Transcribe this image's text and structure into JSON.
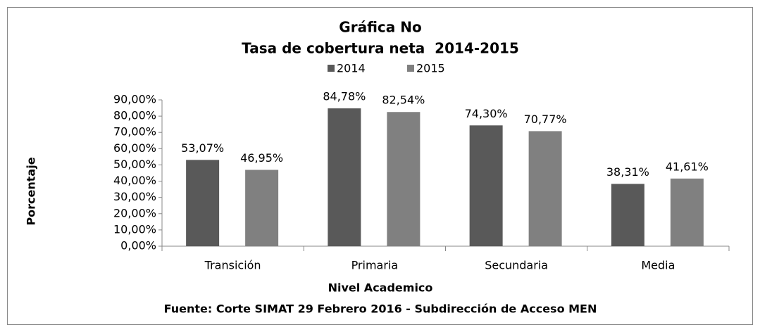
{
  "chart_data": {
    "type": "bar",
    "title": "Gráfica No",
    "subtitle": "Tasa de cobertura neta  2014-2015",
    "x_label": "Nivel Academico",
    "y_label": "Porcentaje",
    "source": "Fuente: Corte SIMAT 29 Febrero 2016 - Subdirección de Acceso MEN",
    "categories": [
      "Transición",
      "Primaria",
      "Secundaria",
      "Media"
    ],
    "series": [
      {
        "name": "2014",
        "color": "#595959",
        "values": [
          53.07,
          84.78,
          74.3,
          38.31
        ],
        "value_labels": [
          "53,07%",
          "84,78%",
          "74,30%",
          "38,31%"
        ]
      },
      {
        "name": "2015",
        "color": "#808080",
        "values": [
          46.95,
          82.54,
          70.77,
          41.61
        ],
        "value_labels": [
          "46,95%",
          "82,54%",
          "70,77%",
          "41,61%"
        ]
      }
    ],
    "ylim": [
      0,
      90
    ],
    "yticks": [
      {
        "value": 0,
        "label": "0,00%"
      },
      {
        "value": 10,
        "label": "10,00%"
      },
      {
        "value": 20,
        "label": "20,00%"
      },
      {
        "value": 30,
        "label": "30,00%"
      },
      {
        "value": 40,
        "label": "40,00%"
      },
      {
        "value": 50,
        "label": "50,00%"
      },
      {
        "value": 60,
        "label": "60,00%"
      },
      {
        "value": 70,
        "label": "70,00%"
      },
      {
        "value": 80,
        "label": "80,00%"
      },
      {
        "value": 90,
        "label": "90,00%"
      }
    ],
    "legend": "top",
    "grid": false
  }
}
